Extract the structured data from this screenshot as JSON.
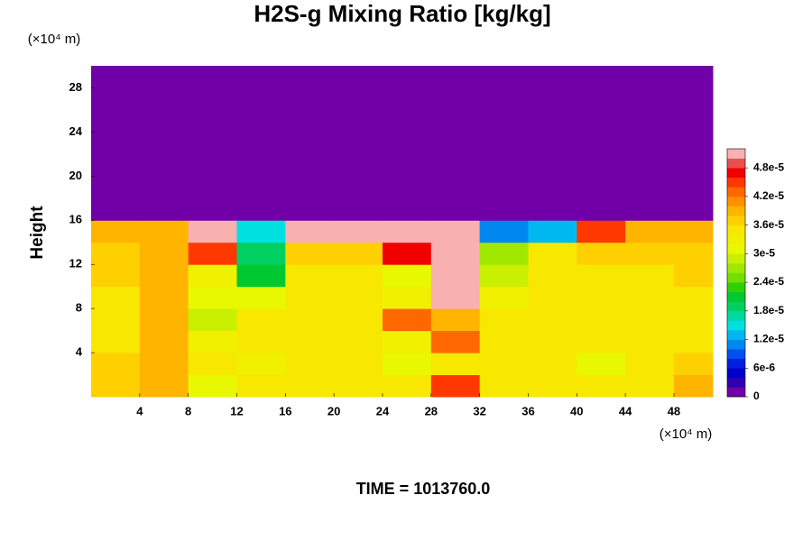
{
  "chart_data": {
    "type": "heatmap",
    "title": "H2S-g Mixing Ratio [kg/kg]",
    "y_label": "Height",
    "x_unit": "(×10⁴ m)",
    "y_unit": "(×10⁴ m)",
    "annotation": "TIME = 1013760.0",
    "xlim": [
      0,
      51.2
    ],
    "ylim": [
      0,
      30
    ],
    "xticks": [
      4,
      8,
      12,
      16,
      20,
      24,
      28,
      32,
      36,
      40,
      44,
      48
    ],
    "yticks": [
      4,
      8,
      12,
      16,
      20,
      24,
      28
    ],
    "x": [
      2,
      6,
      10,
      14,
      18,
      22,
      26,
      30,
      34,
      38,
      42,
      46,
      50
    ],
    "y": [
      1,
      3,
      5,
      7,
      9,
      11,
      13,
      15,
      17,
      19,
      21,
      23,
      25,
      27,
      29
    ],
    "z": [
      [
        3.7e-05,
        3.8e-05,
        3.1e-05,
        3.4e-05,
        3.5e-05,
        3.5e-05,
        3.4e-05,
        4.4e-05,
        3.5e-05,
        3.5e-05,
        3.5e-05,
        3.5e-05,
        3.9e-05
      ],
      [
        3.6e-05,
        3.8e-05,
        3.4e-05,
        3.2e-05,
        3.4e-05,
        3.5e-05,
        3.1e-05,
        3.4e-05,
        3.5e-05,
        3.5e-05,
        3e-05,
        3.5e-05,
        3.6e-05
      ],
      [
        3.5e-05,
        3.9e-05,
        3.2e-05,
        3.4e-05,
        3.4e-05,
        3.5e-05,
        3.2e-05,
        4.2e-05,
        3.5e-05,
        3.5e-05,
        3.4e-05,
        3.5e-05,
        3.5e-05
      ],
      [
        3.5e-05,
        3.9e-05,
        2.8e-05,
        3.4e-05,
        3.5e-05,
        3.5e-05,
        4.2e-05,
        3.8e-05,
        3.4e-05,
        3.5e-05,
        3.5e-05,
        3.5e-05,
        3.5e-05
      ],
      [
        3.5e-05,
        3.8e-05,
        3e-05,
        3e-05,
        3.5e-05,
        3.5e-05,
        3.2e-05,
        5e-05,
        3.3e-05,
        3.4e-05,
        3.5e-05,
        3.5e-05,
        3.5e-05
      ],
      [
        3.7e-05,
        3.8e-05,
        3.2e-05,
        2e-05,
        3.4e-05,
        3.5e-05,
        3e-05,
        5.2e-05,
        2.8e-05,
        3.4e-05,
        3.5e-05,
        3.5e-05,
        3.6e-05
      ],
      [
        3.6e-05,
        3.8e-05,
        4.4e-05,
        1.8e-05,
        3.6e-05,
        3.6e-05,
        4.6e-05,
        5.2e-05,
        2.6e-05,
        3.4e-05,
        3.6e-05,
        3.6e-05,
        3.6e-05
      ],
      [
        3.8e-05,
        3.8e-05,
        5.2e-05,
        1.5e-05,
        5.2e-05,
        5.2e-05,
        5.2e-05,
        5.2e-05,
        1e-05,
        1.2e-05,
        4.5e-05,
        3.8e-05,
        3.8e-05
      ],
      [
        0,
        0,
        0,
        0,
        0,
        0,
        0,
        0,
        0,
        0,
        0,
        0,
        0
      ],
      [
        0,
        0,
        0,
        0,
        0,
        0,
        0,
        0,
        0,
        0,
        0,
        0,
        0
      ],
      [
        0,
        0,
        0,
        0,
        0,
        0,
        0,
        0,
        0,
        0,
        0,
        0,
        0
      ],
      [
        0,
        0,
        0,
        0,
        0,
        0,
        0,
        0,
        0,
        0,
        0,
        0,
        0
      ],
      [
        0,
        0,
        0,
        0,
        0,
        0,
        0,
        0,
        0,
        0,
        0,
        0,
        0
      ],
      [
        0,
        0,
        0,
        0,
        0,
        0,
        0,
        0,
        0,
        0,
        0,
        0,
        0
      ],
      [
        0,
        0,
        0,
        0,
        0,
        0,
        0,
        0,
        0,
        0,
        0,
        0,
        0
      ]
    ],
    "clim": [
      0,
      5.2e-05
    ],
    "cticks": [
      0,
      {
        "value": 6e-06,
        "label": "6e-6"
      },
      {
        "value": 1.2e-05,
        "label": "1.2e-5"
      },
      {
        "value": 1.8e-05,
        "label": "1.8e-5"
      },
      {
        "value": 2.4e-05,
        "label": "2.4e-5"
      },
      {
        "value": 3e-05,
        "label": "3e-5"
      },
      {
        "value": 3.6e-05,
        "label": "3.6e-5"
      },
      {
        "value": 4.2e-05,
        "label": "4.2e-5"
      },
      {
        "value": 4.8e-05,
        "label": "4.8e-5"
      }
    ],
    "colors": [
      "#7200a8",
      "#3000b0",
      "#0000c8",
      "#0020e0",
      "#0050f0",
      "#0088f0",
      "#00b8f0",
      "#00e0e0",
      "#00d8a0",
      "#00d060",
      "#00c830",
      "#30d000",
      "#70e000",
      "#a0e800",
      "#c8f000",
      "#e8f800",
      "#f0f000",
      "#f8e800",
      "#ffd000",
      "#ffb400",
      "#ff9000",
      "#ff6800",
      "#ff3800",
      "#f00000",
      "#e85050",
      "#f8b0b0"
    ]
  }
}
